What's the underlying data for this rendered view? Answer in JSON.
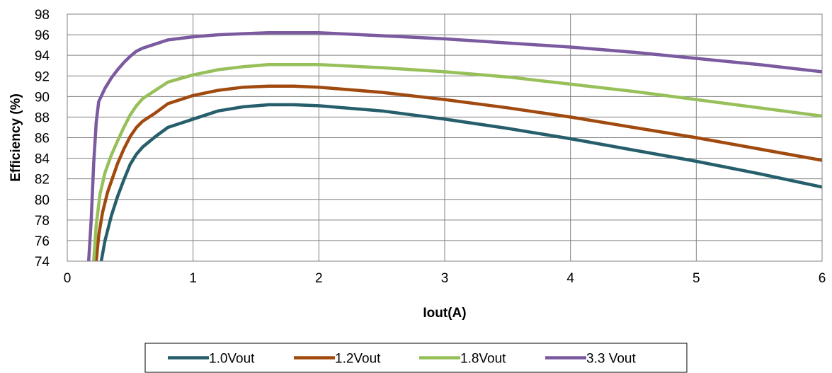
{
  "chart_data": {
    "type": "line",
    "title": "",
    "xlabel": "Iout(A)",
    "ylabel": "Efficiency  (%)",
    "xlim": [
      0,
      6
    ],
    "ylim": [
      74,
      98
    ],
    "x_ticks": [
      "0",
      "1",
      "2",
      "3",
      "4",
      "5",
      "6"
    ],
    "y_ticks": [
      "74",
      "76",
      "78",
      "80",
      "82",
      "84",
      "86",
      "88",
      "90",
      "92",
      "94",
      "96",
      "98"
    ],
    "grid": true,
    "legend_position": "bottom",
    "series": [
      {
        "name": "1.0Vout",
        "color": "#265f6b",
        "points": [
          [
            0.27,
            74
          ],
          [
            0.3,
            76
          ],
          [
            0.35,
            78.4
          ],
          [
            0.4,
            80.3
          ],
          [
            0.45,
            81.9
          ],
          [
            0.5,
            83.4
          ],
          [
            0.55,
            84.4
          ],
          [
            0.6,
            85.1
          ],
          [
            0.7,
            86.1
          ],
          [
            0.8,
            87
          ],
          [
            1.0,
            87.8
          ],
          [
            1.2,
            88.6
          ],
          [
            1.4,
            89
          ],
          [
            1.6,
            89.2
          ],
          [
            1.8,
            89.2
          ],
          [
            2.0,
            89.1
          ],
          [
            2.5,
            88.6
          ],
          [
            3.0,
            87.8
          ],
          [
            3.5,
            86.9
          ],
          [
            4.0,
            85.9
          ],
          [
            4.5,
            84.8
          ],
          [
            5.0,
            83.7
          ],
          [
            5.5,
            82.5
          ],
          [
            6.0,
            81.2
          ]
        ]
      },
      {
        "name": "1.2Vout",
        "color": "#a14a10",
        "points": [
          [
            0.23,
            74
          ],
          [
            0.25,
            76.5
          ],
          [
            0.28,
            78.7
          ],
          [
            0.32,
            80.7
          ],
          [
            0.36,
            82.1
          ],
          [
            0.4,
            83.5
          ],
          [
            0.45,
            84.9
          ],
          [
            0.5,
            86.1
          ],
          [
            0.55,
            87
          ],
          [
            0.6,
            87.6
          ],
          [
            0.7,
            88.4
          ],
          [
            0.8,
            89.3
          ],
          [
            1.0,
            90.1
          ],
          [
            1.2,
            90.6
          ],
          [
            1.4,
            90.9
          ],
          [
            1.6,
            91
          ],
          [
            1.8,
            91
          ],
          [
            2.0,
            90.9
          ],
          [
            2.5,
            90.4
          ],
          [
            3.0,
            89.7
          ],
          [
            3.5,
            88.9
          ],
          [
            4.0,
            88
          ],
          [
            4.5,
            87
          ],
          [
            5.0,
            86
          ],
          [
            5.5,
            84.9
          ],
          [
            6.0,
            83.8
          ]
        ]
      },
      {
        "name": "1.8Vout",
        "color": "#97c05a",
        "points": [
          [
            0.21,
            74
          ],
          [
            0.23,
            77.5
          ],
          [
            0.26,
            80.5
          ],
          [
            0.3,
            82.6
          ],
          [
            0.35,
            84.3
          ],
          [
            0.4,
            85.7
          ],
          [
            0.45,
            87
          ],
          [
            0.5,
            88.2
          ],
          [
            0.55,
            89.1
          ],
          [
            0.6,
            89.8
          ],
          [
            0.7,
            90.6
          ],
          [
            0.8,
            91.4
          ],
          [
            1.0,
            92.1
          ],
          [
            1.2,
            92.6
          ],
          [
            1.4,
            92.9
          ],
          [
            1.6,
            93.1
          ],
          [
            1.8,
            93.1
          ],
          [
            2.0,
            93.1
          ],
          [
            2.5,
            92.8
          ],
          [
            3.0,
            92.4
          ],
          [
            3.5,
            91.9
          ],
          [
            4.0,
            91.2
          ],
          [
            4.5,
            90.5
          ],
          [
            5.0,
            89.7
          ],
          [
            5.5,
            88.9
          ],
          [
            6.0,
            88.1
          ]
        ]
      },
      {
        "name": "3.3 Vout",
        "color": "#7b5aa0",
        "points": [
          [
            0.17,
            74
          ],
          [
            0.19,
            78
          ],
          [
            0.21,
            83.5
          ],
          [
            0.23,
            87.5
          ],
          [
            0.25,
            89.5
          ],
          [
            0.3,
            90.8
          ],
          [
            0.35,
            91.8
          ],
          [
            0.4,
            92.6
          ],
          [
            0.45,
            93.3
          ],
          [
            0.5,
            93.9
          ],
          [
            0.55,
            94.4
          ],
          [
            0.6,
            94.7
          ],
          [
            0.7,
            95.1
          ],
          [
            0.8,
            95.5
          ],
          [
            1.0,
            95.8
          ],
          [
            1.2,
            96
          ],
          [
            1.4,
            96.1
          ],
          [
            1.6,
            96.2
          ],
          [
            1.8,
            96.2
          ],
          [
            2.0,
            96.2
          ],
          [
            2.5,
            95.9
          ],
          [
            3.0,
            95.6
          ],
          [
            3.5,
            95.2
          ],
          [
            4.0,
            94.8
          ],
          [
            4.5,
            94.3
          ],
          [
            5.0,
            93.7
          ],
          [
            5.5,
            93.1
          ],
          [
            6.0,
            92.4
          ]
        ]
      }
    ]
  }
}
